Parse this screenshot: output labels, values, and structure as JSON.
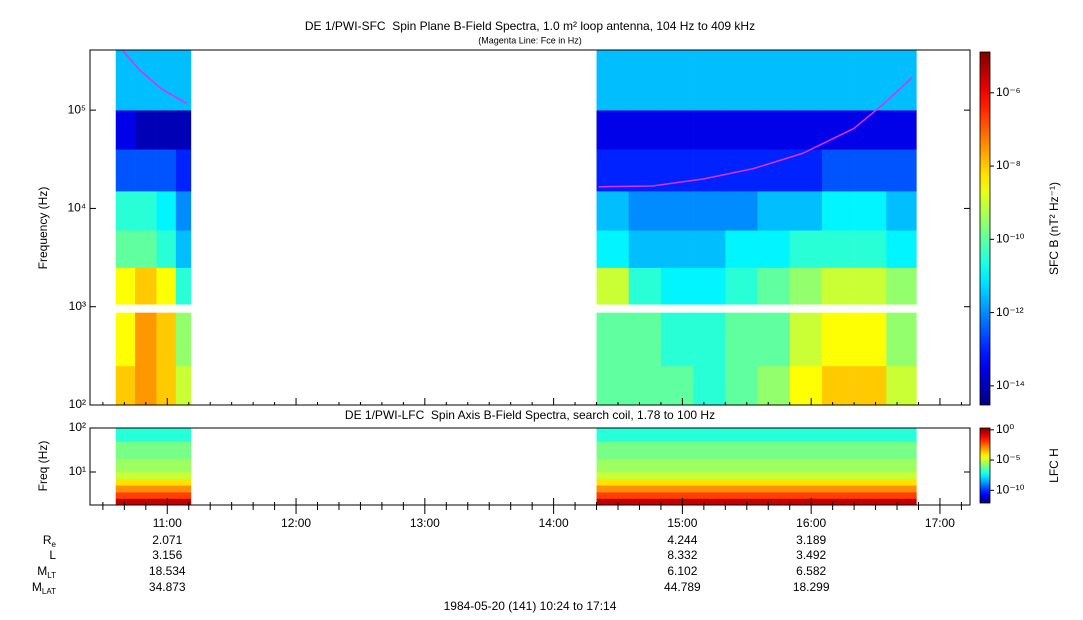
{
  "chart_data": [
    {
      "type": "heatmap",
      "title": "DE 1/PWI-SFC  Spin Plane B-Field Spectra, 1.0 m² loop antenna, 104 Hz to 409 kHz",
      "subtitle": "(Magenta Line: Fce in Hz)",
      "ylabel": "Frequency (Hz)",
      "colorbar_label": "SFC B (nT² Hz⁻¹)",
      "log_y": true,
      "log_z": true,
      "colormap": "jet",
      "ylim": [
        100,
        409000
      ],
      "yticks": [
        {
          "value": 100,
          "label": "10²"
        },
        {
          "value": 1000,
          "label": "10³"
        },
        {
          "value": 10000,
          "label": "10⁴"
        },
        {
          "value": 100000,
          "label": "10⁵"
        }
      ],
      "zlim": [
        3e-15,
        1.3e-05
      ],
      "zticks": [
        {
          "value": 1e-06,
          "label": "10⁻⁶"
        },
        {
          "value": 1e-08,
          "label": "10⁻⁸"
        },
        {
          "value": 1e-10,
          "label": "10⁻¹⁰"
        },
        {
          "value": 1e-12,
          "label": "10⁻¹²"
        },
        {
          "value": 1e-14,
          "label": "10⁻¹⁴"
        }
      ],
      "x_edges": [
        636,
        645,
        655,
        664,
        671,
        860,
        875,
        890,
        905,
        920,
        935,
        950,
        965,
        980,
        995,
        1009
      ],
      "y_edges": [
        100,
        250,
        870,
        1060,
        2500,
        6000,
        15000,
        40000,
        100000,
        409000
      ],
      "z": [
        [
          1e-08,
          3e-08,
          1e-08,
          1e-09,
          null,
          1e-10,
          1e-10,
          1e-10,
          3e-11,
          1e-10,
          3e-10,
          3e-09,
          1e-08,
          1e-08,
          1e-09
        ],
        [
          3e-09,
          3e-08,
          1e-08,
          3e-10,
          null,
          1e-10,
          1e-10,
          3e-11,
          3e-11,
          1e-10,
          1e-10,
          1e-09,
          3e-09,
          3e-09,
          3e-10
        ],
        [
          null,
          null,
          null,
          null,
          null,
          null,
          null,
          null,
          null,
          null,
          null,
          null,
          null,
          null,
          null
        ],
        [
          3e-09,
          1e-08,
          3e-09,
          3e-11,
          null,
          1e-09,
          3e-11,
          1e-11,
          1e-11,
          3e-11,
          1e-10,
          3e-10,
          1e-09,
          1e-09,
          3e-10
        ],
        [
          1e-10,
          1e-10,
          3e-11,
          3e-12,
          null,
          1e-11,
          3e-12,
          3e-12,
          3e-12,
          1e-11,
          1e-11,
          3e-11,
          3e-11,
          3e-11,
          1e-11
        ],
        [
          3e-11,
          3e-11,
          1e-11,
          1e-12,
          null,
          3e-12,
          1e-12,
          1e-12,
          1e-12,
          1e-12,
          3e-12,
          3e-12,
          1e-11,
          1e-11,
          3e-12
        ],
        [
          3e-13,
          3e-13,
          3e-13,
          1e-13,
          null,
          1e-13,
          1e-13,
          1e-13,
          1e-13,
          1e-13,
          1e-13,
          1e-13,
          3e-13,
          3e-13,
          3e-13
        ],
        [
          3e-14,
          1e-14,
          1e-14,
          1e-14,
          null,
          3e-14,
          3e-14,
          3e-14,
          3e-14,
          3e-14,
          3e-14,
          3e-14,
          3e-14,
          3e-14,
          3e-14
        ],
        [
          3e-12,
          3e-12,
          3e-12,
          3e-12,
          null,
          3e-12,
          3e-12,
          3e-12,
          3e-12,
          3e-12,
          3e-12,
          3e-12,
          3e-12,
          3e-12,
          3e-12
        ]
      ],
      "series": [
        {
          "color": "#e030e8",
          "x": [
            639,
            647,
            657,
            669,
            765,
            861,
            886,
            910,
            933,
            956,
            980,
            994,
            1007
          ],
          "values": [
            410000,
            257000,
            166000,
            117000,
            null,
            16600,
            16900,
            20000,
            25400,
            36300,
            65300,
            117000,
            214000
          ]
        }
      ]
    },
    {
      "type": "heatmap",
      "title": "DE 1/PWI-LFC  Spin Axis B-Field Spectra, search coil, 1.78 to 100 Hz",
      "ylabel": "Freq (Hz)",
      "colorbar_label": "LFC H",
      "log_y": true,
      "log_z": true,
      "colormap": "jet",
      "ylim": [
        1.78,
        100
      ],
      "yticks": [
        {
          "value": 10,
          "label": "10¹"
        },
        {
          "value": 100,
          "label": "10²"
        }
      ],
      "zlim": [
        8e-13,
        2
      ],
      "zticks": [
        {
          "value": 1,
          "label": "10⁰"
        },
        {
          "value": 1e-05,
          "label": "10⁻⁵"
        },
        {
          "value": 1e-10,
          "label": "10⁻¹⁰"
        }
      ],
      "x_edges": [
        636,
        671,
        860,
        1009
      ],
      "y_edges": [
        1.78,
        2.5,
        3.5,
        5,
        7,
        10,
        20,
        50,
        100
      ],
      "z": [
        [
          0.3,
          null,
          0.3
        ],
        [
          0.01,
          null,
          0.01
        ],
        [
          0.001,
          null,
          0.001
        ],
        [
          0.0001,
          null,
          0.0001
        ],
        [
          1e-05,
          null,
          1e-05
        ],
        [
          3e-06,
          null,
          3e-06
        ],
        [
          1e-06,
          null,
          1e-06
        ],
        [
          1e-07,
          null,
          1e-07
        ]
      ]
    }
  ],
  "time_axis": {
    "xlim": [
      624,
      1034
    ],
    "xticks": [
      {
        "value": 660,
        "label": "11:00"
      },
      {
        "value": 720,
        "label": "12:00"
      },
      {
        "value": 780,
        "label": "13:00"
      },
      {
        "value": 840,
        "label": "14:00"
      },
      {
        "value": 900,
        "label": "15:00"
      },
      {
        "value": 960,
        "label": "16:00"
      },
      {
        "value": 1020,
        "label": "17:00"
      }
    ],
    "xminor": [
      630,
      640,
      650,
      670,
      680,
      690,
      700,
      710,
      730,
      740,
      750,
      760,
      770,
      790,
      800,
      810,
      820,
      830,
      850,
      860,
      870,
      880,
      890,
      910,
      920,
      930,
      940,
      950,
      970,
      980,
      990,
      1000,
      1010,
      1030
    ]
  },
  "ephemeris": {
    "labels": [
      {
        "text": "R",
        "sub": "e"
      },
      {
        "text": "L"
      },
      {
        "text": "M",
        "sub": "LT"
      },
      {
        "text": "M",
        "sub": "LAT"
      }
    ],
    "columns": [
      {
        "time": 660,
        "values": [
          2.071,
          3.156,
          18.534,
          34.873
        ]
      },
      {
        "time": 900,
        "values": [
          4.244,
          8.332,
          6.102,
          44.789
        ]
      },
      {
        "time": 960,
        "values": [
          3.189,
          3.492,
          6.582,
          18.299
        ]
      }
    ]
  },
  "footer": "1984-05-20 (141) 10:24 to 17:14"
}
